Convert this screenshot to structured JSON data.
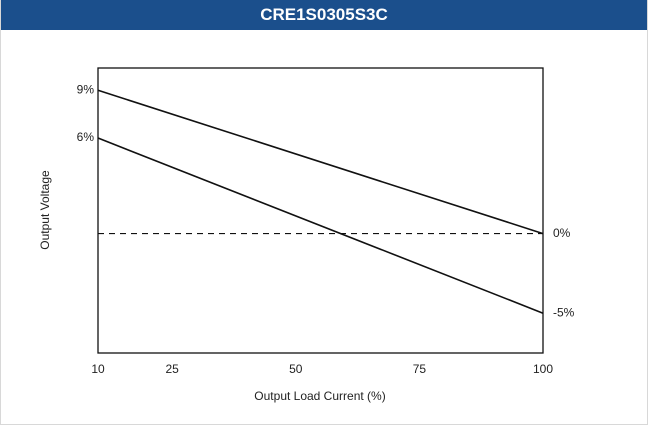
{
  "chart_data": {
    "type": "line",
    "title": "CRE1S0305S3C",
    "xlabel": "Output Load Current (%)",
    "ylabel": "Output Voltage",
    "x": [
      10,
      100
    ],
    "series": [
      {
        "color": "#111111",
        "values": [
          9,
          0
        ]
      },
      {
        "color": "#111111",
        "values": [
          6,
          -5
        ]
      }
    ],
    "xlim": [
      10,
      100
    ],
    "xticks": [
      10,
      25,
      50,
      75,
      100
    ],
    "ylim": [
      -7.5,
      10.4
    ],
    "yticks": [
      {
        "value": 9,
        "label": "9%"
      },
      {
        "value": 6,
        "label": "6%"
      }
    ],
    "y2lim": [
      -7.5,
      10.4
    ],
    "y2ticks": [
      {
        "value": 0,
        "label": "0%"
      },
      {
        "value": -5,
        "label": "-5%"
      }
    ],
    "reference_lines": [
      {
        "value": 0,
        "style": "dashed"
      }
    ],
    "grid": false
  }
}
